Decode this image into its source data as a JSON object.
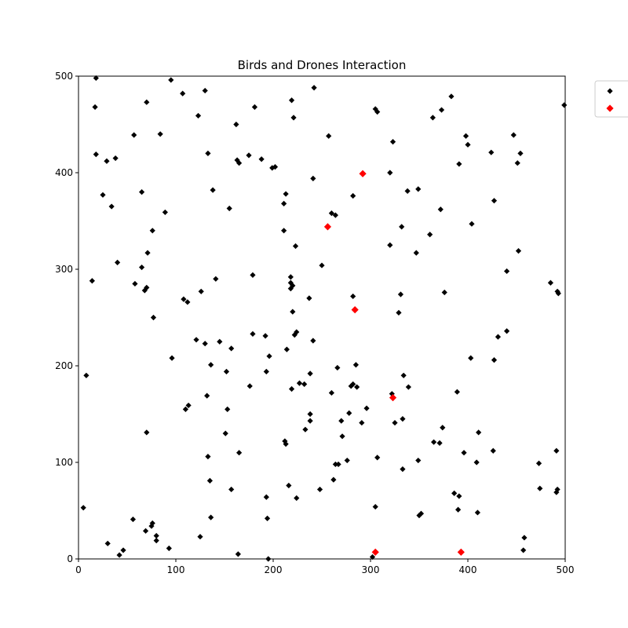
{
  "chart_data": {
    "type": "scatter",
    "title": "Birds and Drones Interaction",
    "xlabel": "",
    "ylabel": "",
    "xlim": [
      0,
      500
    ],
    "ylim": [
      0,
      500
    ],
    "xticks": [
      0,
      100,
      200,
      300,
      400,
      500
    ],
    "yticks": [
      0,
      100,
      200,
      300,
      400,
      500
    ],
    "grid": false,
    "legend_position": "upper-right-outside",
    "series": [
      {
        "marker": "diamond",
        "color": "#000000",
        "points": [
          [
            18,
            498
          ],
          [
            95,
            496
          ],
          [
            130,
            485
          ],
          [
            107,
            482
          ],
          [
            242,
            488
          ],
          [
            383,
            479
          ],
          [
            70,
            473
          ],
          [
            17,
            468
          ],
          [
            181,
            468
          ],
          [
            219,
            475
          ],
          [
            305,
            466
          ],
          [
            307,
            463
          ],
          [
            499,
            470
          ],
          [
            123,
            459
          ],
          [
            221,
            457
          ],
          [
            364,
            457
          ],
          [
            373,
            465
          ],
          [
            162,
            450
          ],
          [
            57,
            439
          ],
          [
            84,
            440
          ],
          [
            257,
            438
          ],
          [
            323,
            432
          ],
          [
            398,
            438
          ],
          [
            400,
            429
          ],
          [
            447,
            439
          ],
          [
            424,
            421
          ],
          [
            454,
            420
          ],
          [
            18,
            419
          ],
          [
            29,
            412
          ],
          [
            38,
            415
          ],
          [
            133,
            420
          ],
          [
            175,
            418
          ],
          [
            188,
            414
          ],
          [
            163,
            413
          ],
          [
            165,
            410
          ],
          [
            199,
            405
          ],
          [
            202,
            406
          ],
          [
            320,
            400
          ],
          [
            391,
            409
          ],
          [
            451,
            410
          ],
          [
            241,
            394
          ],
          [
            25,
            377
          ],
          [
            65,
            380
          ],
          [
            138,
            382
          ],
          [
            213,
            378
          ],
          [
            282,
            376
          ],
          [
            338,
            381
          ],
          [
            349,
            383
          ],
          [
            34,
            365
          ],
          [
            211,
            368
          ],
          [
            155,
            363
          ],
          [
            260,
            358
          ],
          [
            264,
            356
          ],
          [
            372,
            362
          ],
          [
            427,
            371
          ],
          [
            89,
            359
          ],
          [
            76,
            340
          ],
          [
            211,
            340
          ],
          [
            404,
            347
          ],
          [
            332,
            344
          ],
          [
            361,
            336
          ],
          [
            71,
            317
          ],
          [
            320,
            325
          ],
          [
            223,
            324
          ],
          [
            40,
            307
          ],
          [
            65,
            302
          ],
          [
            250,
            304
          ],
          [
            347,
            317
          ],
          [
            452,
            319
          ],
          [
            14,
            288
          ],
          [
            58,
            285
          ],
          [
            141,
            290
          ],
          [
            218,
            292
          ],
          [
            218,
            286
          ],
          [
            220,
            283
          ],
          [
            218,
            280
          ],
          [
            70,
            281
          ],
          [
            68,
            278
          ],
          [
            126,
            277
          ],
          [
            108,
            269
          ],
          [
            112,
            266
          ],
          [
            237,
            270
          ],
          [
            282,
            272
          ],
          [
            376,
            276
          ],
          [
            331,
            274
          ],
          [
            440,
            298
          ],
          [
            485,
            286
          ],
          [
            492,
            277
          ],
          [
            493,
            275
          ],
          [
            179,
            294
          ],
          [
            77,
            250
          ],
          [
            220,
            256
          ],
          [
            329,
            255
          ],
          [
            121,
            227
          ],
          [
            130,
            223
          ],
          [
            145,
            225
          ],
          [
            157,
            218
          ],
          [
            179,
            233
          ],
          [
            192,
            231
          ],
          [
            222,
            232
          ],
          [
            224,
            235
          ],
          [
            214,
            217
          ],
          [
            241,
            226
          ],
          [
            196,
            210
          ],
          [
            431,
            230
          ],
          [
            440,
            236
          ],
          [
            96,
            208
          ],
          [
            136,
            201
          ],
          [
            152,
            194
          ],
          [
            193,
            194
          ],
          [
            266,
            198
          ],
          [
            285,
            201
          ],
          [
            403,
            208
          ],
          [
            427,
            206
          ],
          [
            8,
            190
          ],
          [
            176,
            179
          ],
          [
            219,
            176
          ],
          [
            227,
            182
          ],
          [
            232,
            181
          ],
          [
            238,
            192
          ],
          [
            280,
            179
          ],
          [
            282,
            181
          ],
          [
            286,
            178
          ],
          [
            334,
            190
          ],
          [
            339,
            178
          ],
          [
            389,
            173
          ],
          [
            113,
            159
          ],
          [
            110,
            155
          ],
          [
            132,
            169
          ],
          [
            153,
            155
          ],
          [
            238,
            150
          ],
          [
            238,
            143
          ],
          [
            260,
            172
          ],
          [
            270,
            143
          ],
          [
            278,
            151
          ],
          [
            291,
            141
          ],
          [
            296,
            156
          ],
          [
            322,
            171
          ],
          [
            325,
            141
          ],
          [
            333,
            145
          ],
          [
            374,
            136
          ],
          [
            70,
            131
          ],
          [
            151,
            130
          ],
          [
            271,
            127
          ],
          [
            233,
            134
          ],
          [
            212,
            122
          ],
          [
            213,
            119
          ],
          [
            365,
            121
          ],
          [
            371,
            120
          ],
          [
            411,
            131
          ],
          [
            133,
            106
          ],
          [
            165,
            110
          ],
          [
            264,
            98
          ],
          [
            267,
            98
          ],
          [
            276,
            102
          ],
          [
            307,
            105
          ],
          [
            349,
            102
          ],
          [
            396,
            110
          ],
          [
            409,
            100
          ],
          [
            426,
            112
          ],
          [
            473,
            99
          ],
          [
            135,
            81
          ],
          [
            157,
            72
          ],
          [
            216,
            76
          ],
          [
            224,
            63
          ],
          [
            248,
            72
          ],
          [
            262,
            82
          ],
          [
            193,
            64
          ],
          [
            333,
            93
          ],
          [
            386,
            68
          ],
          [
            391,
            65
          ],
          [
            491,
            112
          ],
          [
            474,
            73
          ],
          [
            491,
            69
          ],
          [
            492,
            72
          ],
          [
            136,
            43
          ],
          [
            194,
            42
          ],
          [
            305,
            54
          ],
          [
            350,
            45
          ],
          [
            352,
            47
          ],
          [
            390,
            51
          ],
          [
            410,
            48
          ],
          [
            56,
            41
          ],
          [
            76,
            37
          ],
          [
            75,
            34
          ],
          [
            69,
            29
          ],
          [
            80,
            24
          ],
          [
            80,
            19
          ],
          [
            30,
            16
          ],
          [
            93,
            11
          ],
          [
            46,
            9
          ],
          [
            42,
            4
          ],
          [
            125,
            23
          ],
          [
            164,
            5
          ],
          [
            195,
            0
          ],
          [
            302,
            2
          ],
          [
            458,
            22
          ],
          [
            457,
            9
          ],
          [
            5,
            53
          ]
        ]
      },
      {
        "marker": "diamond",
        "color": "#ff0000",
        "points": [
          [
            292,
            399
          ],
          [
            256,
            344
          ],
          [
            284,
            258
          ],
          [
            323,
            167
          ],
          [
            305,
            7
          ],
          [
            393,
            7
          ]
        ]
      }
    ]
  }
}
